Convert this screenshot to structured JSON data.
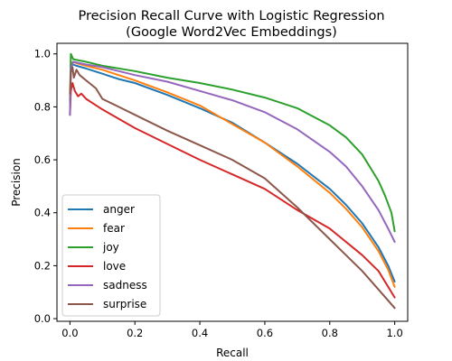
{
  "chart_data": {
    "type": "line",
    "title": "Precision Recall Curve with Logistic Regression",
    "subtitle": "(Google Word2Vec Embeddings)",
    "xlabel": "Recall",
    "ylabel": "Precision",
    "xlim": [
      -0.04,
      1.04
    ],
    "ylim": [
      -0.01,
      1.04
    ],
    "x_ticks": [
      0.0,
      0.2,
      0.4,
      0.6,
      0.8,
      1.0
    ],
    "x_tick_labels": [
      "0.0",
      "0.2",
      "0.4",
      "0.6",
      "0.8",
      "1.0"
    ],
    "y_ticks": [
      0.0,
      0.2,
      0.4,
      0.6,
      0.8,
      1.0
    ],
    "y_tick_labels": [
      "0.0",
      "0.2",
      "0.4",
      "0.6",
      "0.8",
      "1.0"
    ],
    "grid": false,
    "legend_position": "lower-left",
    "series": [
      {
        "name": "anger",
        "color": "#1f77b4",
        "x": [
          0,
          0.003,
          0.01,
          0.02,
          0.05,
          0.1,
          0.15,
          0.2,
          0.3,
          0.4,
          0.5,
          0.6,
          0.7,
          0.8,
          0.85,
          0.9,
          0.95,
          0.98,
          1.0
        ],
        "y": [
          0.77,
          0.955,
          0.96,
          0.955,
          0.945,
          0.925,
          0.905,
          0.89,
          0.845,
          0.795,
          0.74,
          0.665,
          0.585,
          0.49,
          0.43,
          0.36,
          0.27,
          0.2,
          0.14
        ]
      },
      {
        "name": "fear",
        "color": "#ff7f0e",
        "x": [
          0,
          0.003,
          0.01,
          0.02,
          0.05,
          0.1,
          0.15,
          0.2,
          0.3,
          0.4,
          0.5,
          0.6,
          0.7,
          0.8,
          0.85,
          0.9,
          0.95,
          0.98,
          1.0
        ],
        "y": [
          0.77,
          0.965,
          0.97,
          0.965,
          0.955,
          0.94,
          0.92,
          0.9,
          0.855,
          0.805,
          0.735,
          0.665,
          0.575,
          0.475,
          0.415,
          0.345,
          0.255,
          0.185,
          0.12
        ]
      },
      {
        "name": "joy",
        "color": "#2ca02c",
        "x": [
          0,
          0.003,
          0.01,
          0.05,
          0.1,
          0.2,
          0.3,
          0.4,
          0.5,
          0.6,
          0.7,
          0.8,
          0.85,
          0.9,
          0.95,
          0.97,
          0.99,
          1.0
        ],
        "y": [
          0.82,
          1.0,
          0.98,
          0.97,
          0.955,
          0.935,
          0.91,
          0.89,
          0.865,
          0.835,
          0.795,
          0.73,
          0.685,
          0.62,
          0.52,
          0.465,
          0.4,
          0.33
        ]
      },
      {
        "name": "love",
        "color": "#d62728",
        "x": [
          0,
          0.003,
          0.008,
          0.015,
          0.025,
          0.035,
          0.05,
          0.1,
          0.15,
          0.2,
          0.3,
          0.4,
          0.5,
          0.6,
          0.7,
          0.8,
          0.9,
          0.95,
          1.0
        ],
        "y": [
          0.77,
          0.86,
          0.89,
          0.86,
          0.84,
          0.85,
          0.83,
          0.79,
          0.755,
          0.72,
          0.66,
          0.6,
          0.545,
          0.49,
          0.41,
          0.34,
          0.24,
          0.18,
          0.08
        ]
      },
      {
        "name": "sadness",
        "color": "#9467bd",
        "x": [
          0,
          0.003,
          0.01,
          0.05,
          0.1,
          0.2,
          0.3,
          0.4,
          0.5,
          0.6,
          0.7,
          0.8,
          0.85,
          0.9,
          0.95,
          0.98,
          1.0
        ],
        "y": [
          0.77,
          0.945,
          0.97,
          0.96,
          0.95,
          0.92,
          0.895,
          0.86,
          0.825,
          0.78,
          0.715,
          0.63,
          0.575,
          0.5,
          0.41,
          0.34,
          0.29
        ]
      },
      {
        "name": "surprise",
        "color": "#8c564b",
        "x": [
          0,
          0.003,
          0.008,
          0.012,
          0.02,
          0.03,
          0.05,
          0.08,
          0.1,
          0.15,
          0.2,
          0.3,
          0.4,
          0.5,
          0.6,
          0.7,
          0.8,
          0.9,
          0.95,
          1.0
        ],
        "y": [
          0.85,
          0.93,
          0.95,
          0.91,
          0.94,
          0.92,
          0.9,
          0.87,
          0.83,
          0.8,
          0.77,
          0.71,
          0.655,
          0.6,
          0.53,
          0.42,
          0.3,
          0.18,
          0.11,
          0.04
        ]
      }
    ]
  }
}
